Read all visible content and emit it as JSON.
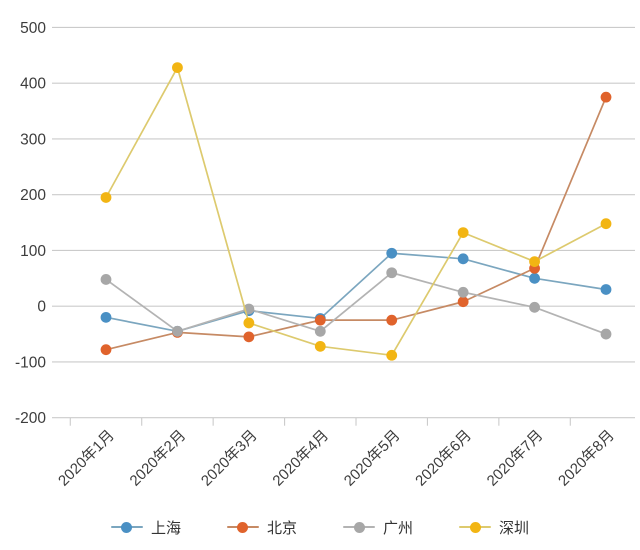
{
  "chart_data": {
    "type": "line",
    "title": "",
    "xlabel": "",
    "ylabel": "",
    "categories": [
      "2020年1月",
      "2020年2月",
      "2020年3月",
      "2020年4月",
      "2020年5月",
      "2020年6月",
      "2020年7月",
      "2020年8月"
    ],
    "series": [
      {
        "key": "shanghai",
        "name": "上海",
        "color": "#4a90c4",
        "line_color": "#7ba6bf",
        "values": [
          -20,
          -45,
          -8,
          -22,
          95,
          85,
          50,
          30
        ]
      },
      {
        "key": "beijing",
        "name": "北京",
        "color": "#e0632c",
        "line_color": "#c68a64",
        "values": [
          -78,
          -47,
          -55,
          -25,
          -25,
          8,
          68,
          375
        ]
      },
      {
        "key": "guangzhou",
        "name": "广州",
        "color": "#a7a7a7",
        "line_color": "#b3b3b3",
        "values": [
          48,
          -45,
          -5,
          -45,
          60,
          25,
          -2,
          -50
        ]
      },
      {
        "key": "shenzhen",
        "name": "深圳",
        "color": "#f2b513",
        "line_color": "#ddca6e",
        "values": [
          195,
          428,
          -30,
          -72,
          -88,
          132,
          80,
          148
        ]
      }
    ],
    "y_ticks": [
      500,
      400,
      300,
      200,
      100,
      0,
      -100,
      -200
    ],
    "ylim": [
      -200,
      500
    ],
    "grid": true,
    "legend_position": "bottom",
    "grid_color": "#cbcbcb",
    "axis_text_color": "#3d3d3d",
    "background_color": "#ffffff"
  }
}
